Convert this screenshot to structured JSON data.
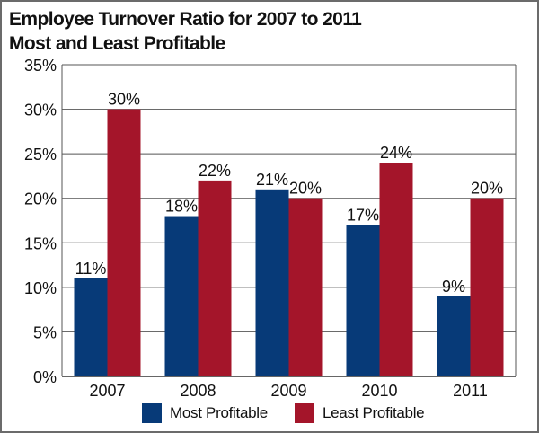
{
  "colors": {
    "series_1": "#073a78",
    "series_2": "#a4152a",
    "frame": "#6b6b6b",
    "grid": "#555555"
  },
  "chart_data": {
    "type": "bar",
    "title_line1": "Employee Turnover Ratio for 2007 to 2011",
    "title_line2": "Most and Least Profitable",
    "categories": [
      "2007",
      "2008",
      "2009",
      "2010",
      "2011"
    ],
    "series": [
      {
        "name": "Most Profitable",
        "values": [
          11,
          18,
          21,
          17,
          9
        ]
      },
      {
        "name": "Least Profitable",
        "values": [
          30,
          22,
          20,
          24,
          20
        ]
      }
    ],
    "data_labels": [
      [
        "11%",
        "18%",
        "21%",
        "17%",
        "9%"
      ],
      [
        "30%",
        "22%",
        "20%",
        "24%",
        "20%"
      ]
    ],
    "y_ticks": [
      0,
      5,
      10,
      15,
      20,
      25,
      30,
      35
    ],
    "y_tick_labels": [
      "0%",
      "5%",
      "10%",
      "15%",
      "20%",
      "25%",
      "30%",
      "35%"
    ],
    "ylim": [
      0,
      35
    ],
    "grid": true,
    "legend_position": "bottom"
  }
}
